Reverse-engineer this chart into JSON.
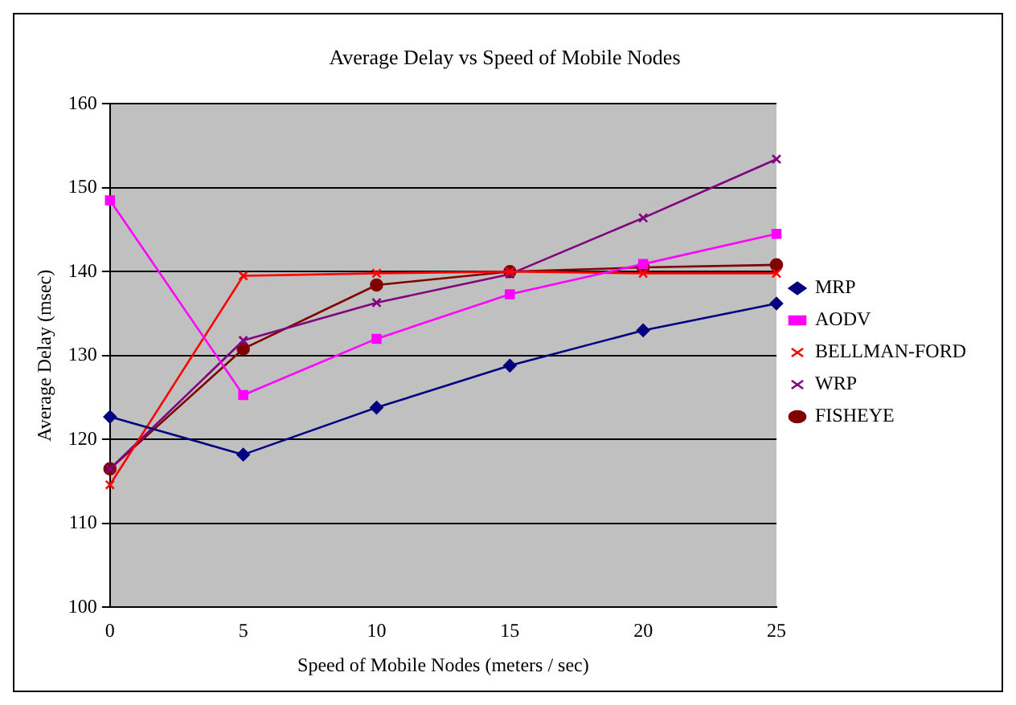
{
  "chart_data": {
    "type": "line",
    "title": "Average Delay vs Speed of Mobile Nodes",
    "xlabel": "Speed of Mobile Nodes (meters / sec)",
    "ylabel": "Average Delay (msec)",
    "categories": [
      "0",
      "5",
      "10",
      "15",
      "20",
      "25"
    ],
    "series": [
      {
        "name": "MRP",
        "color": "#000080",
        "marker": "diamond",
        "values": [
          122.7,
          118.2,
          123.8,
          128.8,
          133,
          136.2
        ]
      },
      {
        "name": "AODV",
        "color": "#ff00ff",
        "marker": "square",
        "values": [
          148.5,
          125.3,
          132,
          137.3,
          140.9,
          144.5
        ]
      },
      {
        "name": "BELLMAN-FORD",
        "color": "#ff0000",
        "marker": "cross",
        "values": [
          114.6,
          139.5,
          139.8,
          140,
          139.8,
          139.8
        ]
      },
      {
        "name": "WRP",
        "color": "#800080",
        "marker": "cross",
        "values": [
          116.5,
          131.8,
          136.3,
          139.7,
          146.4,
          153.4
        ]
      },
      {
        "name": "FISHEYE",
        "color": "#800000",
        "marker": "circle",
        "values": [
          116.5,
          130.8,
          138.4,
          140,
          140.5,
          140.8
        ]
      }
    ],
    "ylim": [
      100,
      160
    ],
    "yticks": [
      100,
      110,
      120,
      130,
      140,
      150,
      160
    ],
    "grid": "y",
    "legend": "right",
    "line_style": "solid"
  }
}
